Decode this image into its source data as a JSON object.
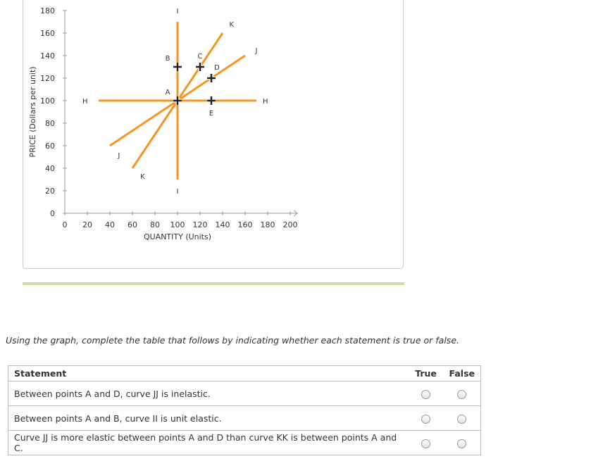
{
  "chart_data": {
    "type": "line",
    "xlabel": "QUANTITY (Units)",
    "ylabel": "PRICE (Dollars per unit)",
    "xlim": [
      0,
      200
    ],
    "ylim": [
      0,
      180
    ],
    "x_ticks": [
      0,
      20,
      40,
      60,
      80,
      100,
      120,
      140,
      160,
      180,
      200
    ],
    "y_ticks": [
      0,
      20,
      40,
      60,
      80,
      100,
      120,
      140,
      160,
      180
    ],
    "line_color": "#f7941d",
    "series": [
      {
        "name": "H",
        "points": [
          [
            30,
            100
          ],
          [
            170,
            100
          ]
        ]
      },
      {
        "name": "I",
        "points": [
          [
            100,
            30
          ],
          [
            100,
            170
          ]
        ]
      },
      {
        "name": "J",
        "points": [
          [
            40,
            60
          ],
          [
            160,
            140
          ]
        ]
      },
      {
        "name": "K",
        "points": [
          [
            60,
            40
          ],
          [
            140,
            160
          ]
        ]
      }
    ],
    "curve_labels": [
      {
        "text": "H",
        "x": 18,
        "y": 100
      },
      {
        "text": "H",
        "x": 178,
        "y": 100
      },
      {
        "text": "I",
        "x": 100,
        "y": 180
      },
      {
        "text": "I",
        "x": 100,
        "y": 20
      },
      {
        "text": "J",
        "x": 170,
        "y": 145
      },
      {
        "text": "J",
        "x": 48,
        "y": 52
      },
      {
        "text": "K",
        "x": 148,
        "y": 168
      },
      {
        "text": "K",
        "x": 69,
        "y": 33
      }
    ],
    "points": [
      {
        "name": "A",
        "x": 100,
        "y": 100
      },
      {
        "name": "B",
        "x": 100,
        "y": 130
      },
      {
        "name": "C",
        "x": 120,
        "y": 130
      },
      {
        "name": "D",
        "x": 130,
        "y": 120
      },
      {
        "name": "E",
        "x": 130,
        "y": 100
      }
    ]
  },
  "instruction": "Using the graph, complete the table that follows by indicating whether each statement is true or false.",
  "table": {
    "headers": {
      "statement": "Statement",
      "true": "True",
      "false": "False"
    },
    "rows": [
      {
        "statement": "Between points A and D, curve JJ is inelastic."
      },
      {
        "statement": "Between points A and B, curve II is unit elastic."
      },
      {
        "statement": "Curve JJ is more elastic between points A and D than curve KK is between points A and C."
      }
    ]
  }
}
